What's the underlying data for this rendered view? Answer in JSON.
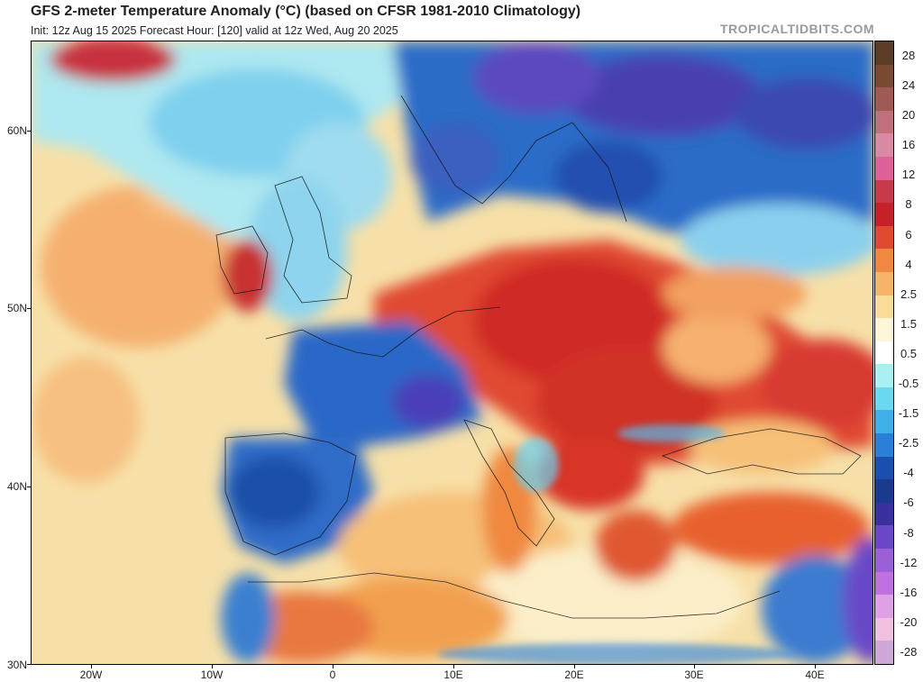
{
  "header": {
    "title": "GFS 2-meter Temperature Anomaly (°C) (based on CFSR 1981-2010 Climatology)",
    "subtitle": "Init: 12z Aug 15 2025   Forecast Hour: [120]   valid at 12z Wed, Aug 20 2025",
    "brand": "TROPICALTIDBITS.COM"
  },
  "map": {
    "lat_labels": [
      "60N",
      "50N",
      "40N",
      "30N"
    ],
    "lon_labels": [
      "20W",
      "10W",
      "0",
      "10E",
      "20E",
      "30E",
      "40E"
    ]
  },
  "colorbar": {
    "labels": [
      "28",
      "24",
      "20",
      "16",
      "12",
      "8",
      "6",
      "4",
      "2.5",
      "1.5",
      "0.5",
      "-0.5",
      "-1.5",
      "-2.5",
      "-4",
      "-6",
      "-8",
      "-12",
      "-16",
      "-20",
      "-28"
    ],
    "colors": [
      "#5c3d28",
      "#7a4a32",
      "#a05a56",
      "#c0707a",
      "#d88aa2",
      "#e0609a",
      "#c83a4a",
      "#c82028",
      "#e04830",
      "#f08840",
      "#f6b468",
      "#f8dc98",
      "#fdf6d8",
      "#ffffff",
      "#aaf0f0",
      "#6ad8f0",
      "#40b0e8",
      "#2a80d8",
      "#1c50b0",
      "#1a3a90",
      "#3a30a0",
      "#6a48c8",
      "#9a60d8",
      "#c070e0",
      "#e0a0e8",
      "#f0c0e0",
      "#d0a8d8"
    ]
  }
}
